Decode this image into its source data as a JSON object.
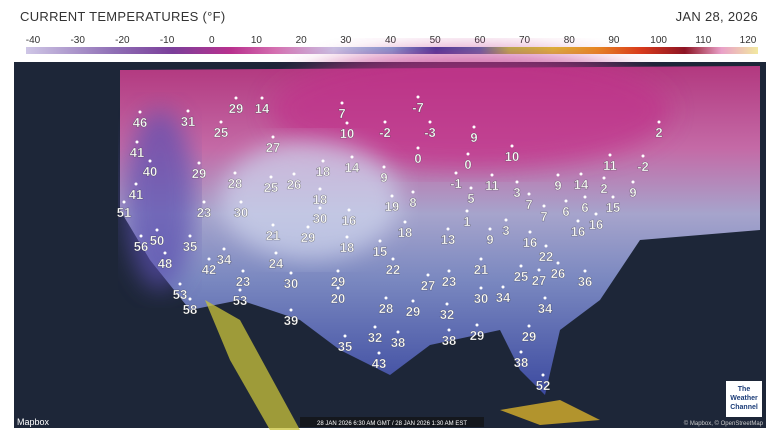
{
  "header": {
    "title": "CURRENT TEMPERATURES (°F)",
    "date": "JAN 28, 2026"
  },
  "legend": {
    "ticks": [
      -40,
      -30,
      -20,
      -10,
      0,
      10,
      20,
      30,
      40,
      50,
      60,
      70,
      80,
      90,
      100,
      110,
      120
    ]
  },
  "map": {
    "temperatures": [
      46,
      31,
      29,
      14,
      7,
      -7,
      25,
      10,
      -2,
      -3,
      9,
      2,
      41,
      27,
      0,
      10,
      40,
      29,
      18,
      14,
      9,
      0,
      11,
      -2,
      41,
      28,
      25,
      26,
      -1,
      11,
      3,
      9,
      14,
      2,
      9,
      51,
      23,
      30,
      18,
      19,
      8,
      5,
      7,
      6,
      15,
      30,
      16,
      1,
      7,
      6,
      16,
      56,
      50,
      35,
      21,
      29,
      18,
      15,
      18,
      13,
      9,
      3,
      16,
      16,
      48,
      34,
      42,
      24,
      22,
      21,
      22,
      23,
      30,
      29,
      27,
      23,
      25,
      27,
      26,
      36,
      53,
      53,
      20,
      30,
      34,
      58,
      28,
      29,
      32,
      34,
      39,
      32,
      38,
      38,
      29,
      29,
      35,
      43,
      38,
      52
    ]
  },
  "footer": {
    "timestamp": "28 JAN 2026 6:30 AM GMT / 28 JAN 2026 1:30 AM EST",
    "attribution": "Mapbox",
    "credits": "© Mapbox, © OpenStreetMap",
    "logo": [
      "The",
      "Weather",
      "Channel"
    ]
  }
}
